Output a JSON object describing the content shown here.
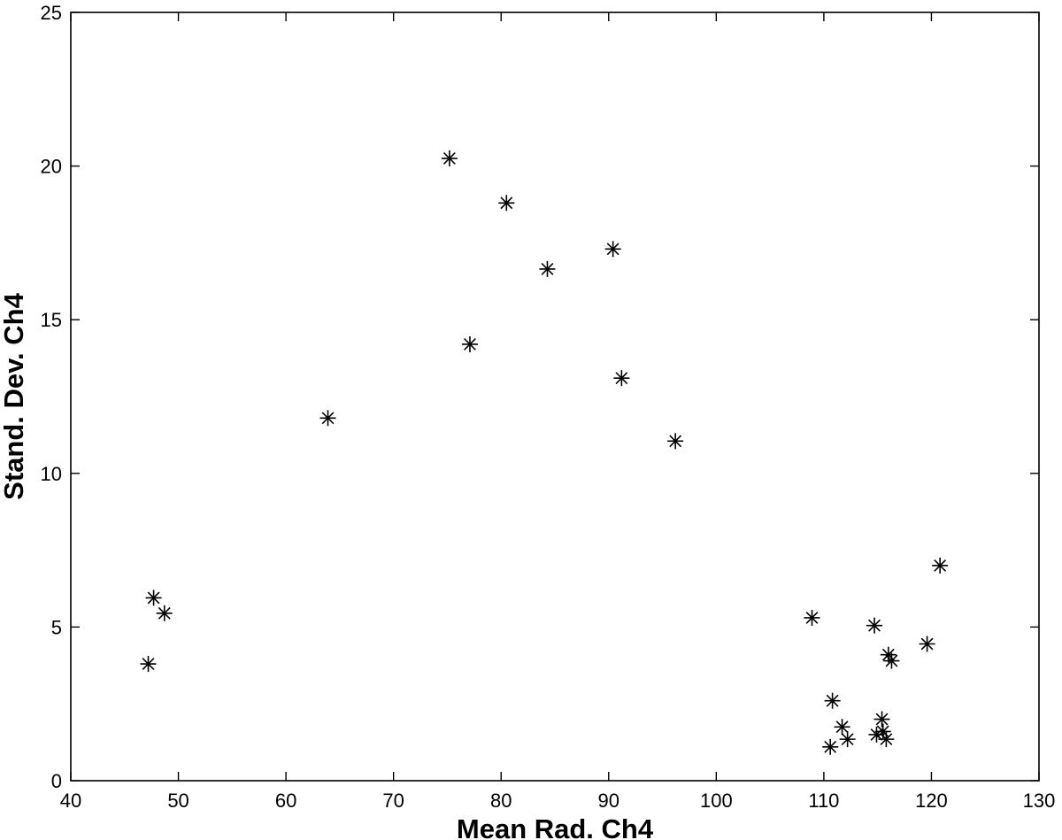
{
  "chart_data": {
    "type": "scatter",
    "xlabel": "Mean Rad. Ch4",
    "ylabel": "Stand. Dev. Ch4",
    "xlim": [
      40,
      130
    ],
    "ylim": [
      0,
      25
    ],
    "xticks": [
      40,
      50,
      60,
      70,
      80,
      90,
      100,
      110,
      120,
      130
    ],
    "yticks": [
      0,
      5,
      10,
      15,
      20,
      25
    ],
    "grid": false,
    "marker": "asterisk",
    "color": "#000000",
    "points": [
      {
        "x": 75.2,
        "y": 20.25
      },
      {
        "x": 80.5,
        "y": 18.8
      },
      {
        "x": 84.3,
        "y": 16.65
      },
      {
        "x": 90.4,
        "y": 17.3
      },
      {
        "x": 77.1,
        "y": 14.2
      },
      {
        "x": 91.2,
        "y": 13.1
      },
      {
        "x": 63.9,
        "y": 11.8
      },
      {
        "x": 96.2,
        "y": 11.05
      },
      {
        "x": 47.7,
        "y": 5.95
      },
      {
        "x": 48.7,
        "y": 5.45
      },
      {
        "x": 47.2,
        "y": 3.8
      },
      {
        "x": 108.9,
        "y": 5.3
      },
      {
        "x": 114.7,
        "y": 5.05
      },
      {
        "x": 120.8,
        "y": 7.0
      },
      {
        "x": 119.6,
        "y": 4.45
      },
      {
        "x": 116.0,
        "y": 4.1
      },
      {
        "x": 116.3,
        "y": 3.9
      },
      {
        "x": 110.8,
        "y": 2.6
      },
      {
        "x": 111.7,
        "y": 1.75
      },
      {
        "x": 112.2,
        "y": 1.35
      },
      {
        "x": 110.6,
        "y": 1.1
      },
      {
        "x": 115.4,
        "y": 2.0
      },
      {
        "x": 115.5,
        "y": 1.6
      },
      {
        "x": 114.9,
        "y": 1.5
      },
      {
        "x": 115.8,
        "y": 1.35
      }
    ]
  }
}
